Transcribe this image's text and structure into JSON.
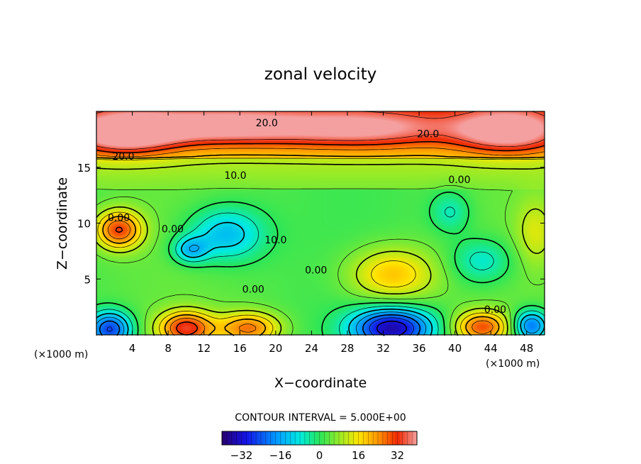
{
  "chart_data": {
    "type": "heatmap",
    "title": "zonal velocity",
    "xlabel": "X−coordinate",
    "ylabel": "Z−coordinate",
    "x_unit_left": "(×1000 m)",
    "x_unit_right": "(×1000 m)",
    "xlim": [
      0,
      50
    ],
    "ylim": [
      0,
      20
    ],
    "x_ticks": [
      4,
      8,
      12,
      16,
      20,
      24,
      28,
      32,
      36,
      40,
      44,
      48
    ],
    "y_ticks": [
      5,
      10,
      15
    ],
    "contour_interval_label": "CONTOUR INTERVAL = 5.000E+00",
    "contour_labels": [
      {
        "text": "20.0",
        "x": 19,
        "y": 19.0
      },
      {
        "text": "20.0",
        "x": 37,
        "y": 18.0
      },
      {
        "text": "20.0",
        "x": 3,
        "y": 16.0
      },
      {
        "text": "10.0",
        "x": 15.5,
        "y": 14.3
      },
      {
        "text": "0.00",
        "x": 40.5,
        "y": 13.9
      },
      {
        "text": "0.00",
        "x": 2.5,
        "y": 10.5
      },
      {
        "text": "0.00",
        "x": 8.5,
        "y": 9.5
      },
      {
        "text": "10.0",
        "x": 20,
        "y": 8.5
      },
      {
        "text": "0.00",
        "x": 24.5,
        "y": 5.8
      },
      {
        "text": "0.00",
        "x": 17.5,
        "y": 4.1
      },
      {
        "text": "0.00",
        "x": 44.5,
        "y": 2.3
      }
    ],
    "blobs": [
      {
        "x": 3,
        "y": 18.0,
        "rx": 6,
        "ry": 1.8,
        "value": 30
      },
      {
        "x": 14,
        "y": 18.6,
        "rx": 10,
        "ry": 1.6,
        "value": 24
      },
      {
        "x": 30,
        "y": 18.4,
        "rx": 10,
        "ry": 1.7,
        "value": 22
      },
      {
        "x": 46,
        "y": 18.2,
        "rx": 6,
        "ry": 1.9,
        "value": 28
      },
      {
        "x": 2.5,
        "y": 9.4,
        "rx": 2.6,
        "ry": 1.7,
        "value": 30
      },
      {
        "x": 14.5,
        "y": 9.0,
        "rx": 4.2,
        "ry": 2.4,
        "value": -14
      },
      {
        "x": 10.5,
        "y": 7.6,
        "rx": 2.0,
        "ry": 1.2,
        "value": -12
      },
      {
        "x": 39.5,
        "y": 11.0,
        "rx": 2.2,
        "ry": 1.8,
        "value": -6
      },
      {
        "x": 43,
        "y": 6.6,
        "rx": 3.4,
        "ry": 2.0,
        "value": -8
      },
      {
        "x": 33,
        "y": 5.4,
        "rx": 4.8,
        "ry": 2.4,
        "value": 20
      },
      {
        "x": 49,
        "y": 9.2,
        "rx": 2.2,
        "ry": 3.0,
        "value": 12
      },
      {
        "x": 10,
        "y": 0.6,
        "rx": 3.0,
        "ry": 1.5,
        "value": 32
      },
      {
        "x": 17,
        "y": 0.6,
        "rx": 3.4,
        "ry": 1.4,
        "value": 26
      },
      {
        "x": 43,
        "y": 0.7,
        "rx": 3.0,
        "ry": 1.4,
        "value": 28
      },
      {
        "x": 33,
        "y": 0.6,
        "rx": 4.5,
        "ry": 1.8,
        "value": -34
      },
      {
        "x": 1.5,
        "y": 0.5,
        "rx": 2.4,
        "ry": 1.6,
        "value": -26
      },
      {
        "x": 48.5,
        "y": 0.8,
        "rx": 2.0,
        "ry": 1.4,
        "value": -22
      }
    ],
    "colorbar": {
      "min": -40,
      "max": 40,
      "ticks": [
        -32,
        -16,
        0,
        16,
        32
      ],
      "tick_labels": [
        "−32",
        "−16",
        "0",
        "16",
        "32"
      ]
    }
  }
}
